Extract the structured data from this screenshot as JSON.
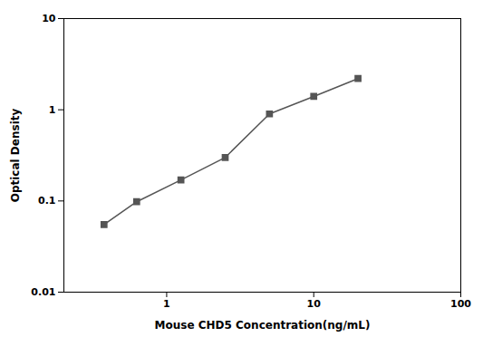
{
  "chart_data": {
    "type": "line",
    "x": [
      0.375,
      0.625,
      1.25,
      2.5,
      5.0,
      10.0,
      20.0
    ],
    "values": [
      0.055,
      0.098,
      0.17,
      0.3,
      0.9,
      1.4,
      2.2
    ],
    "xlabel": "Mouse CHD5 Concentration(ng/mL)",
    "ylabel": "Optical Density",
    "xlim": [
      0.2,
      100
    ],
    "xticks": [
      1,
      10,
      100
    ],
    "ylim": [
      0.01,
      10
    ],
    "yticks": [
      0.01,
      0.1,
      1,
      10
    ],
    "log": true,
    "grid": false,
    "color": "#555555",
    "marker": "square"
  }
}
